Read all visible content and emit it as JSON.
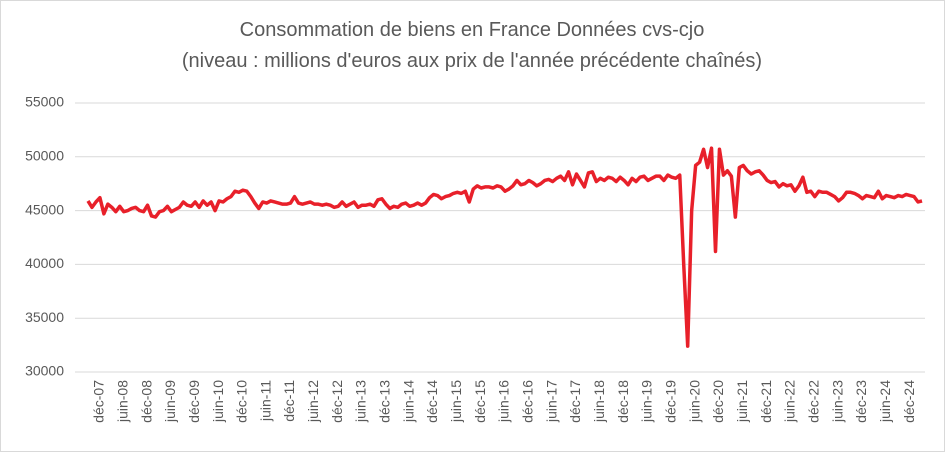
{
  "chart_data": {
    "type": "line",
    "title": "Consommation de biens en France  Données cvs-cjo",
    "subtitle": "(niveau : millions d'euros aux prix de l'année précédente chaînés)",
    "categories": [
      null,
      null,
      null,
      "déc-07",
      null,
      null,
      null,
      null,
      null,
      "juin-08",
      null,
      null,
      null,
      null,
      null,
      "déc-08",
      null,
      null,
      null,
      null,
      null,
      "juin-09",
      null,
      null,
      null,
      null,
      null,
      "déc-09",
      null,
      null,
      null,
      null,
      null,
      "juin-10",
      null,
      null,
      null,
      null,
      null,
      "déc-10",
      null,
      null,
      null,
      null,
      null,
      "juin-11",
      null,
      null,
      null,
      null,
      null,
      "déc-11",
      null,
      null,
      null,
      null,
      null,
      "juin-12",
      null,
      null,
      null,
      null,
      null,
      "déc-12",
      null,
      null,
      null,
      null,
      null,
      "juin-13",
      null,
      null,
      null,
      null,
      null,
      "déc-13",
      null,
      null,
      null,
      null,
      null,
      "juin-14",
      null,
      null,
      null,
      null,
      null,
      "déc-14",
      null,
      null,
      null,
      null,
      null,
      "juin-15",
      null,
      null,
      null,
      null,
      null,
      "déc-15",
      null,
      null,
      null,
      null,
      null,
      "juin-16",
      null,
      null,
      null,
      null,
      null,
      "déc-16",
      null,
      null,
      null,
      null,
      null,
      "juin-17",
      null,
      null,
      null,
      null,
      null,
      "déc-17",
      null,
      null,
      null,
      null,
      null,
      "juin-18",
      null,
      null,
      null,
      null,
      null,
      "déc-18",
      null,
      null,
      null,
      null,
      null,
      "juin-19",
      null,
      null,
      null,
      null,
      null,
      "déc-19",
      null,
      null,
      null,
      null,
      null,
      "juin-20",
      null,
      null,
      null,
      null,
      null,
      "déc-20",
      null,
      null,
      null,
      null,
      null,
      "juin-21",
      null,
      null,
      null,
      null,
      null,
      "déc-21",
      null,
      null,
      null,
      null,
      null,
      "juin-22",
      null,
      null,
      null,
      null,
      null,
      "déc-22",
      null,
      null,
      null,
      null,
      null,
      "juin-23",
      null,
      null,
      null,
      null,
      null,
      "déc-23",
      null,
      null,
      null,
      null,
      null,
      "juin-24",
      null,
      null,
      null,
      null,
      null,
      "déc-24",
      null,
      null,
      null
    ],
    "series": [
      {
        "name": "Consommation de biens",
        "color": "#e8202a",
        "values": [
          45900,
          45300,
          45800,
          46200,
          44700,
          45600,
          45300,
          44900,
          45400,
          44900,
          45000,
          45200,
          45300,
          45000,
          44900,
          45500,
          44500,
          44400,
          44900,
          45000,
          45400,
          44900,
          45100,
          45300,
          45800,
          45500,
          45400,
          45800,
          45300,
          45900,
          45500,
          45800,
          45000,
          45900,
          45800,
          46100,
          46300,
          46800,
          46700,
          46900,
          46800,
          46300,
          45700,
          45200,
          45800,
          45700,
          45900,
          45800,
          45700,
          45600,
          45600,
          45700,
          46300,
          45700,
          45600,
          45700,
          45800,
          45600,
          45600,
          45500,
          45600,
          45500,
          45300,
          45400,
          45800,
          45400,
          45600,
          45800,
          45300,
          45500,
          45500,
          45600,
          45400,
          46000,
          46100,
          45600,
          45200,
          45400,
          45300,
          45600,
          45700,
          45400,
          45500,
          45700,
          45500,
          45700,
          46200,
          46500,
          46400,
          46100,
          46300,
          46400,
          46600,
          46700,
          46600,
          46800,
          45800,
          47000,
          47300,
          47100,
          47200,
          47200,
          47100,
          47300,
          47200,
          46800,
          47000,
          47300,
          47800,
          47400,
          47500,
          47800,
          47600,
          47300,
          47500,
          47800,
          47900,
          47700,
          48000,
          48200,
          47800,
          48600,
          47400,
          48400,
          47800,
          47200,
          48500,
          48600,
          47700,
          48000,
          47800,
          48100,
          48000,
          47700,
          48100,
          47800,
          47400,
          48000,
          47700,
          48100,
          48200,
          47800,
          48000,
          48200,
          48200,
          47800,
          48300,
          48100,
          48000,
          48300,
          40000,
          32400,
          45000,
          49200,
          49500,
          50700,
          49000,
          50800,
          41200,
          50700,
          48300,
          48700,
          48200,
          44400,
          49000,
          49200,
          48700,
          48400,
          48600,
          48700,
          48300,
          47800,
          47600,
          47700,
          47200,
          47500,
          47300,
          47400,
          46800,
          47300,
          48100,
          46700,
          46800,
          46300,
          46800,
          46700,
          46700,
          46500,
          46300,
          45900,
          46200,
          46700,
          46700,
          46600,
          46400,
          46100,
          46400,
          46300,
          46200,
          46800,
          46100,
          46400,
          46300,
          46200,
          46400,
          46300,
          46500,
          46400,
          46300,
          45800,
          45900
        ]
      }
    ],
    "ylim": [
      30000,
      55000
    ],
    "yticks": [
      30000,
      35000,
      40000,
      45000,
      50000,
      55000
    ],
    "grid": true
  }
}
